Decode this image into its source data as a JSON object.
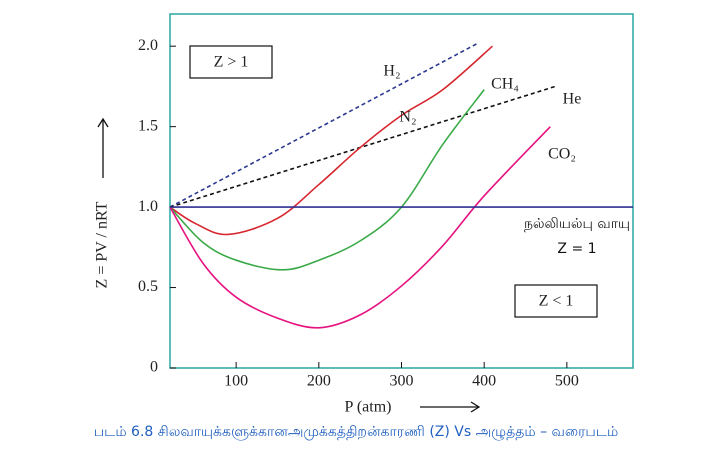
{
  "chart_data": {
    "type": "line",
    "y_label": "Z = PV / nRT",
    "x_label": "P (atm)",
    "caption": "படம் 6.8 சிலவாயுக்களுக்கானஅமுக்கத்திறன்காரணி (Z) Vs அழுத்தம் – வரைபடம்",
    "annotations": [
      "Z > 1",
      "Z < 1"
    ],
    "xlim": [
      20,
      580
    ],
    "ylim": [
      0,
      2.2
    ],
    "xticks": [
      100,
      200,
      300,
      400,
      500
    ],
    "yticks": [
      0,
      {
        "value": 0.5,
        "label": "0.5"
      },
      {
        "value": 1,
        "label": "1.0"
      },
      {
        "value": 1.5,
        "label": "1.5"
      },
      {
        "value": 2,
        "label": "2.0"
      }
    ],
    "series": [
      {
        "name": "H₂",
        "color": "#2b3990",
        "dashed": true,
        "x": [
          20,
          393
        ],
        "values": [
          1.0,
          2.02
        ]
      },
      {
        "name": "He",
        "color": "#111111",
        "dashed": true,
        "x": [
          20,
          486
        ],
        "values": [
          1.0,
          1.75
        ]
      },
      {
        "name": "N₂",
        "color": "#d7262e",
        "dashed": false,
        "x": [
          20,
          50,
          90,
          150,
          200,
          250,
          300,
          350,
          410
        ],
        "values": [
          1.0,
          0.9,
          0.83,
          0.93,
          1.14,
          1.37,
          1.57,
          1.73,
          2.0
        ]
      },
      {
        "name": "CH₄",
        "color": "#3aaa48",
        "dashed": false,
        "x": [
          20,
          60,
          100,
          156,
          200,
          250,
          300,
          350,
          400
        ],
        "values": [
          1.0,
          0.78,
          0.67,
          0.61,
          0.67,
          0.79,
          1.0,
          1.39,
          1.73
        ]
      },
      {
        "name": "CO₂",
        "color": "#e6127f",
        "dashed": false,
        "x": [
          20,
          60,
          100,
          150,
          200,
          250,
          300,
          350,
          400,
          480
        ],
        "values": [
          1.0,
          0.65,
          0.44,
          0.31,
          0.25,
          0.33,
          0.51,
          0.76,
          1.07,
          1.5
        ]
      },
      {
        "name": "நல்லியல்பு வாயு Z = 1",
        "color": "#2e3192",
        "dashed": false,
        "x": [
          20,
          580
        ],
        "values": [
          1.0,
          1.0
        ]
      }
    ]
  }
}
